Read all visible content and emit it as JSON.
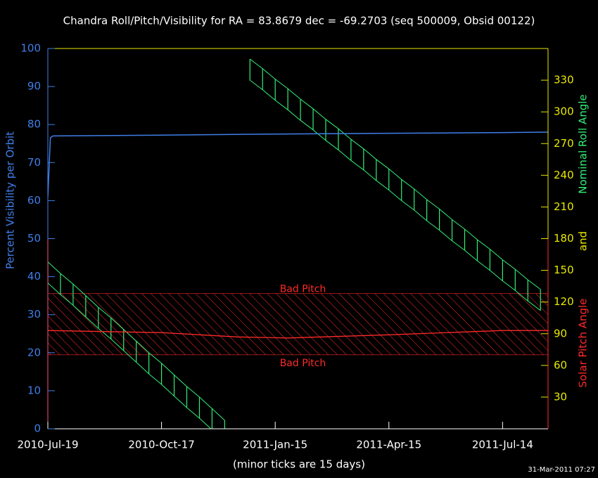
{
  "chart_data": {
    "type": "line",
    "title": "Chandra Roll/Pitch/Visibility for RA = 83.8679 dec = -69.2703 (seq 500009, Obsid 00122)",
    "ylabel": "Percent Visibility per Orbit",
    "y2label_parts": [
      {
        "text": "Solar Pitch Angle",
        "color": "#ff2a2a"
      },
      {
        "text": "and",
        "color": "#e8e800"
      },
      {
        "text": "Nominal Roll Angle",
        "color": "#33ee77"
      }
    ],
    "x_note": "(minor ticks are 15 days)",
    "timestamp": "31-Mar-2011 07:27",
    "xlim": [
      "2010-07-19",
      "2011-08-19"
    ],
    "xticks": [
      {
        "value": "2010-07-19",
        "label": "2010-Jul-19"
      },
      {
        "value": "2010-10-17",
        "label": "2010-Oct-17"
      },
      {
        "value": "2011-01-15",
        "label": "2011-Jan-15"
      },
      {
        "value": "2011-04-15",
        "label": "2011-Apr-15"
      },
      {
        "value": "2011-07-14",
        "label": "2011-Jul-14"
      }
    ],
    "ylim": [
      0,
      100
    ],
    "yticks": [
      0,
      10,
      20,
      30,
      40,
      50,
      60,
      70,
      80,
      90,
      100
    ],
    "y2lim": [
      0,
      360
    ],
    "y2ticks": [
      30,
      60,
      90,
      120,
      150,
      180,
      210,
      240,
      270,
      300,
      330
    ],
    "visibility": {
      "color": "#3f7fe8",
      "x": [
        "2010-07-19",
        "2010-07-21",
        "2010-07-23",
        "2010-10-17",
        "2011-01-15",
        "2011-04-15",
        "2011-07-14",
        "2011-08-19"
      ],
      "values": [
        61,
        76.5,
        77,
        77.2,
        77.5,
        77.7,
        77.9,
        78
      ]
    },
    "pitch": {
      "color": "#ff2a2a",
      "axis": "y2",
      "x": [
        "2010-07-19",
        "2010-10-17",
        "2010-12-16",
        "2011-01-25",
        "2011-04-15",
        "2011-07-14",
        "2011-08-19"
      ],
      "values": [
        93,
        91,
        87,
        86,
        89,
        93,
        93
      ]
    },
    "bad_pitch": {
      "color": "#ff2a2a",
      "label": "Bad Pitch",
      "low": 70,
      "high": 128
    },
    "roll": {
      "color": "#33ee77",
      "axis": "y2",
      "x": [
        "2010-07-19",
        "2010-07-29",
        "2010-08-08",
        "2010-08-18",
        "2010-08-28",
        "2010-09-07",
        "2010-09-17",
        "2010-09-27",
        "2010-10-07",
        "2010-10-17",
        "2010-10-27",
        "2010-11-06",
        "2010-11-16",
        "2010-11-26",
        "2010-12-06",
        "2010-12-16",
        "2010-12-26",
        "2011-01-05",
        "2011-01-15",
        "2011-01-25",
        "2011-02-04",
        "2011-02-14",
        "2011-02-24",
        "2011-03-06",
        "2011-03-16",
        "2011-03-26",
        "2011-04-05",
        "2011-04-15",
        "2011-04-25",
        "2011-05-05",
        "2011-05-15",
        "2011-05-25",
        "2011-06-04",
        "2011-06-14",
        "2011-06-24",
        "2011-07-04",
        "2011-07-14",
        "2011-07-24",
        "2011-08-03",
        "2011-08-13"
      ],
      "high": [
        158,
        147,
        137,
        126,
        115,
        105,
        94,
        83,
        72,
        62,
        51,
        40,
        30,
        19,
        8,
        null,
        350,
        341,
        331,
        322,
        312,
        303,
        293,
        284,
        274,
        265,
        255,
        246,
        236,
        227,
        217,
        208,
        198,
        189,
        179,
        170,
        160,
        151,
        141,
        132
      ],
      "low": [
        138,
        127,
        117,
        106,
        95,
        85,
        74,
        63,
        52,
        42,
        31,
        20,
        10,
        -1,
        -12,
        null,
        330,
        321,
        311,
        302,
        292,
        283,
        273,
        264,
        254,
        245,
        235,
        226,
        216,
        207,
        197,
        188,
        178,
        169,
        159,
        150,
        140,
        131,
        121,
        112
      ]
    }
  }
}
